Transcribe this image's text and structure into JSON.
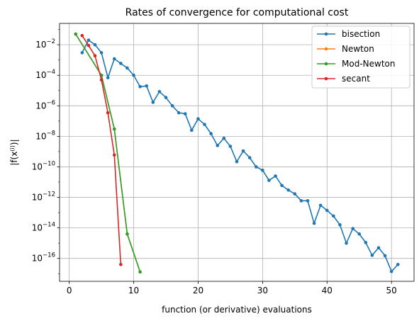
{
  "chart_data": {
    "type": "line",
    "title": "Rates of convergence for computational cost",
    "xlabel": "function (or derivative) evaluations",
    "ylabel_parts": {
      "a": "|f(x",
      "sup": "(i)",
      "b": ")|"
    },
    "xlim": [
      -1.5,
      53.5
    ],
    "ylim_exp": [
      -17.5,
      -0.6
    ],
    "y_scale": "log",
    "grid": true,
    "legend_position": "top-right",
    "x_ticks": [
      0,
      10,
      20,
      30,
      40,
      50
    ],
    "y_tick_exponents": [
      -16,
      -14,
      -12,
      -10,
      -8,
      -6,
      -4,
      -2
    ],
    "series": [
      {
        "name": "bisection",
        "color": "#1f77b4",
        "x": [
          2,
          3,
          4,
          5,
          6,
          7,
          8,
          9,
          10,
          11,
          12,
          13,
          14,
          15,
          16,
          17,
          18,
          19,
          20,
          21,
          22,
          23,
          24,
          25,
          26,
          27,
          28,
          29,
          30,
          31,
          32,
          33,
          34,
          35,
          36,
          37,
          38,
          39,
          40,
          41,
          42,
          43,
          44,
          45,
          46,
          47,
          48,
          49,
          50,
          51
        ],
        "y": [
          0.003,
          0.02,
          0.01,
          0.003,
          7e-05,
          0.0012,
          0.0006,
          0.0003,
          0.0001,
          1.8e-05,
          2e-05,
          1.7e-06,
          8.5e-06,
          3.5e-06,
          1e-06,
          3.5e-07,
          3e-07,
          2.5e-08,
          1.4e-07,
          6e-08,
          1.5e-08,
          2.5e-09,
          7.5e-09,
          2.2e-09,
          2.2e-10,
          1.1e-09,
          4e-10,
          1e-10,
          6e-11,
          1.3e-11,
          2.5e-11,
          6e-12,
          3e-12,
          1.7e-12,
          6e-13,
          6e-13,
          2e-14,
          3e-13,
          1.4e-13,
          6e-14,
          1.6e-14,
          1e-15,
          9e-15,
          4e-15,
          1.1e-15,
          1.6e-16,
          5e-16,
          1.5e-16,
          1.4e-17,
          4e-17
        ]
      },
      {
        "name": "Newton",
        "color": "#ff7f0e",
        "x": [
          1,
          5,
          7,
          9,
          11
        ],
        "y": [
          0.05,
          0.0001,
          3e-08,
          4e-15,
          1.3e-17
        ]
      },
      {
        "name": "Mod-Newton",
        "color": "#2ca02c",
        "x": [
          1,
          5,
          7,
          9,
          11
        ],
        "y": [
          0.05,
          0.0001,
          3e-08,
          4e-15,
          1.3e-17
        ]
      },
      {
        "name": "secant",
        "color": "#d62728",
        "x": [
          2,
          3,
          4,
          5,
          6,
          7,
          8
        ],
        "y": [
          0.04,
          0.009,
          0.0019,
          5e-05,
          3.5e-07,
          6e-10,
          4e-17
        ]
      }
    ]
  }
}
